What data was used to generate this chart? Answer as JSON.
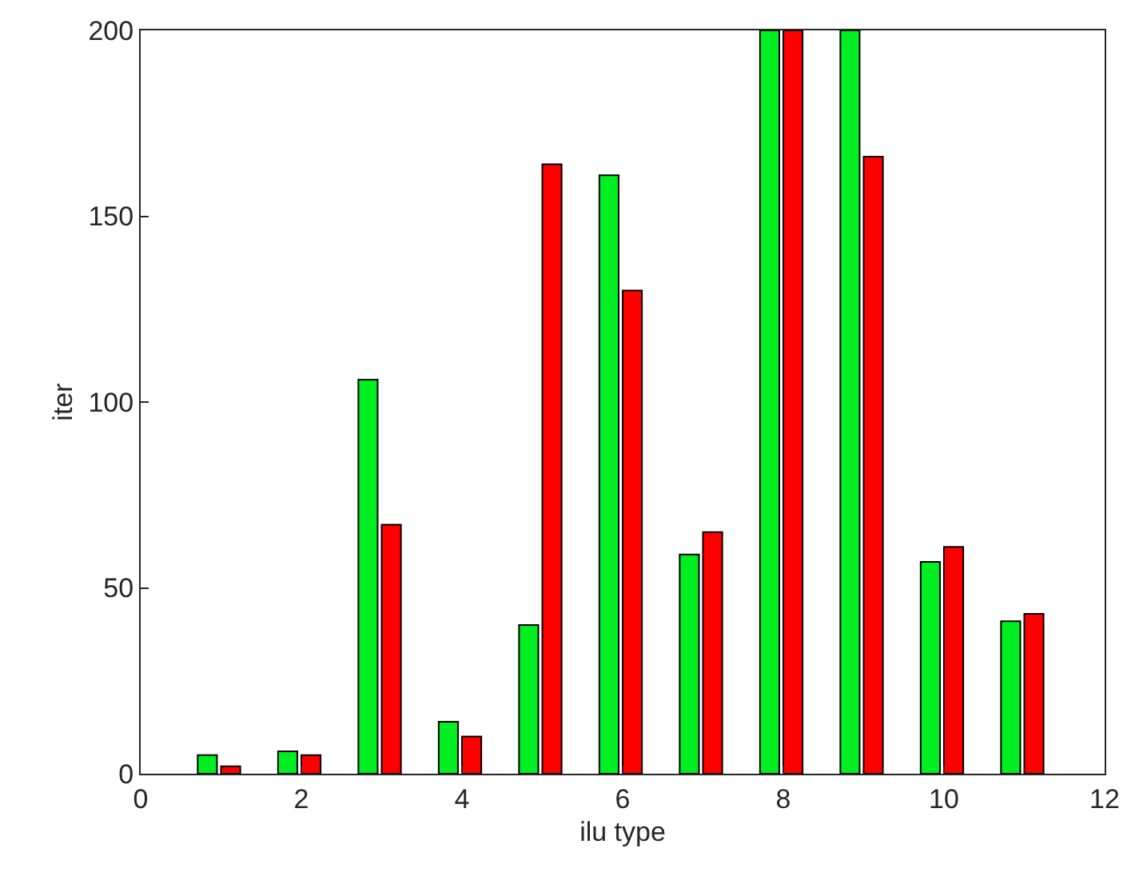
{
  "chart_data": {
    "type": "bar",
    "xlabel": "ilu type",
    "ylabel": "iter",
    "x": [
      1,
      2,
      3,
      4,
      5,
      6,
      7,
      8,
      9,
      10,
      11
    ],
    "series": [
      {
        "color": "#00ee22",
        "values": [
          5,
          6,
          106,
          14,
          40,
          161,
          59,
          200,
          200,
          57,
          41
        ]
      },
      {
        "color": "#ff0000",
        "values": [
          2,
          5,
          67,
          10,
          164,
          130,
          65,
          200,
          166,
          61,
          43
        ]
      }
    ],
    "xlim": [
      0,
      12
    ],
    "xticks": [
      0,
      2,
      4,
      6,
      8,
      10,
      12
    ],
    "ylim": [
      0,
      200
    ],
    "yticks": [
      0,
      50,
      100,
      150,
      200
    ]
  }
}
